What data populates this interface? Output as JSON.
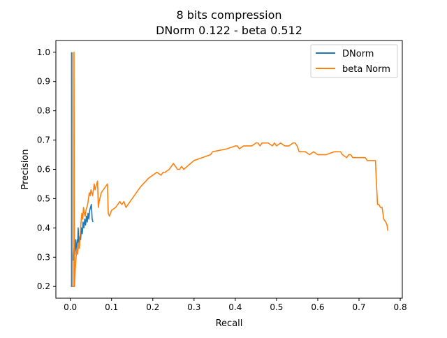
{
  "chart_data": {
    "type": "line",
    "title": "8 bits compression",
    "subtitle": "DNorm 0.122 - beta 0.512",
    "xlabel": "Recall",
    "ylabel": "Precision",
    "xlim": [
      -0.035,
      0.805
    ],
    "ylim": [
      0.16,
      1.04
    ],
    "x_ticks": [
      0.0,
      0.1,
      0.2,
      0.3,
      0.4,
      0.5,
      0.6,
      0.7,
      0.8
    ],
    "x_tick_labels": [
      "0.0",
      "0.1",
      "0.2",
      "0.3",
      "0.4",
      "0.5",
      "0.6",
      "0.7",
      "0.8"
    ],
    "y_ticks": [
      0.2,
      0.3,
      0.4,
      0.5,
      0.6,
      0.7,
      0.8,
      0.9,
      1.0
    ],
    "y_tick_labels": [
      "0.2",
      "0.3",
      "0.4",
      "0.5",
      "0.6",
      "0.7",
      "0.8",
      "0.9",
      "1.0"
    ],
    "grid": false,
    "legend_position": "top-right",
    "series": [
      {
        "name": "DNorm",
        "color": "#1f77b4",
        "x": [
          0.003,
          0.003,
          0.003,
          0.005,
          0.007,
          0.009,
          0.011,
          0.013,
          0.015,
          0.017,
          0.018,
          0.019,
          0.021,
          0.023,
          0.025,
          0.027,
          0.029,
          0.031,
          0.033,
          0.035,
          0.037,
          0.039,
          0.041,
          0.043,
          0.045,
          0.047,
          0.049,
          0.051,
          0.053,
          0.055
        ],
        "y": [
          1.0,
          0.2,
          0.25,
          0.3,
          0.29,
          0.33,
          0.31,
          0.36,
          0.32,
          0.36,
          0.35,
          0.4,
          0.34,
          0.37,
          0.36,
          0.4,
          0.38,
          0.42,
          0.4,
          0.43,
          0.41,
          0.44,
          0.42,
          0.45,
          0.43,
          0.46,
          0.47,
          0.48,
          0.43,
          0.42
        ]
      },
      {
        "name": "beta Norm",
        "color": "#ff7f0e",
        "x": [
          0.005,
          0.005,
          0.009,
          0.009,
          0.01,
          0.012,
          0.014,
          0.016,
          0.018,
          0.02,
          0.022,
          0.024,
          0.026,
          0.028,
          0.03,
          0.032,
          0.034,
          0.036,
          0.038,
          0.04,
          0.042,
          0.044,
          0.046,
          0.048,
          0.05,
          0.052,
          0.054,
          0.056,
          0.058,
          0.06,
          0.062,
          0.064,
          0.066,
          0.068,
          0.07,
          0.075,
          0.08,
          0.085,
          0.09,
          0.092,
          0.095,
          0.1,
          0.11,
          0.115,
          0.12,
          0.125,
          0.13,
          0.135,
          0.15,
          0.17,
          0.19,
          0.21,
          0.22,
          0.225,
          0.23,
          0.24,
          0.25,
          0.26,
          0.265,
          0.27,
          0.275,
          0.3,
          0.34,
          0.345,
          0.38,
          0.4,
          0.405,
          0.41,
          0.42,
          0.425,
          0.43,
          0.44,
          0.45,
          0.455,
          0.46,
          0.465,
          0.48,
          0.49,
          0.495,
          0.5,
          0.51,
          0.52,
          0.53,
          0.54,
          0.545,
          0.55,
          0.555,
          0.56,
          0.57,
          0.58,
          0.59,
          0.6,
          0.61,
          0.62,
          0.64,
          0.65,
          0.655,
          0.66,
          0.67,
          0.675,
          0.68,
          0.685,
          0.69,
          0.695,
          0.7,
          0.705,
          0.71,
          0.715,
          0.72,
          0.725,
          0.73,
          0.735,
          0.74,
          0.742,
          0.745,
          0.748,
          0.752,
          0.756,
          0.76,
          0.765,
          0.768,
          0.77
        ],
        "y": [
          1.0,
          0.2,
          0.2,
          1.0,
          0.2,
          0.26,
          0.3,
          0.33,
          0.31,
          0.35,
          0.33,
          0.38,
          0.42,
          0.45,
          0.43,
          0.47,
          0.45,
          0.44,
          0.46,
          0.47,
          0.48,
          0.5,
          0.52,
          0.51,
          0.53,
          0.52,
          0.51,
          0.53,
          0.55,
          0.53,
          0.54,
          0.55,
          0.56,
          0.47,
          0.49,
          0.52,
          0.53,
          0.54,
          0.55,
          0.45,
          0.44,
          0.46,
          0.47,
          0.48,
          0.49,
          0.48,
          0.49,
          0.47,
          0.5,
          0.54,
          0.57,
          0.59,
          0.58,
          0.59,
          0.59,
          0.6,
          0.62,
          0.6,
          0.6,
          0.61,
          0.6,
          0.63,
          0.65,
          0.66,
          0.67,
          0.68,
          0.68,
          0.67,
          0.68,
          0.68,
          0.68,
          0.68,
          0.69,
          0.69,
          0.68,
          0.69,
          0.69,
          0.68,
          0.69,
          0.68,
          0.69,
          0.68,
          0.68,
          0.69,
          0.69,
          0.68,
          0.66,
          0.66,
          0.66,
          0.65,
          0.66,
          0.65,
          0.65,
          0.65,
          0.66,
          0.66,
          0.66,
          0.65,
          0.64,
          0.65,
          0.65,
          0.64,
          0.64,
          0.64,
          0.64,
          0.64,
          0.64,
          0.64,
          0.63,
          0.63,
          0.63,
          0.63,
          0.63,
          0.56,
          0.48,
          0.48,
          0.47,
          0.47,
          0.43,
          0.42,
          0.41,
          0.39
        ]
      }
    ]
  }
}
